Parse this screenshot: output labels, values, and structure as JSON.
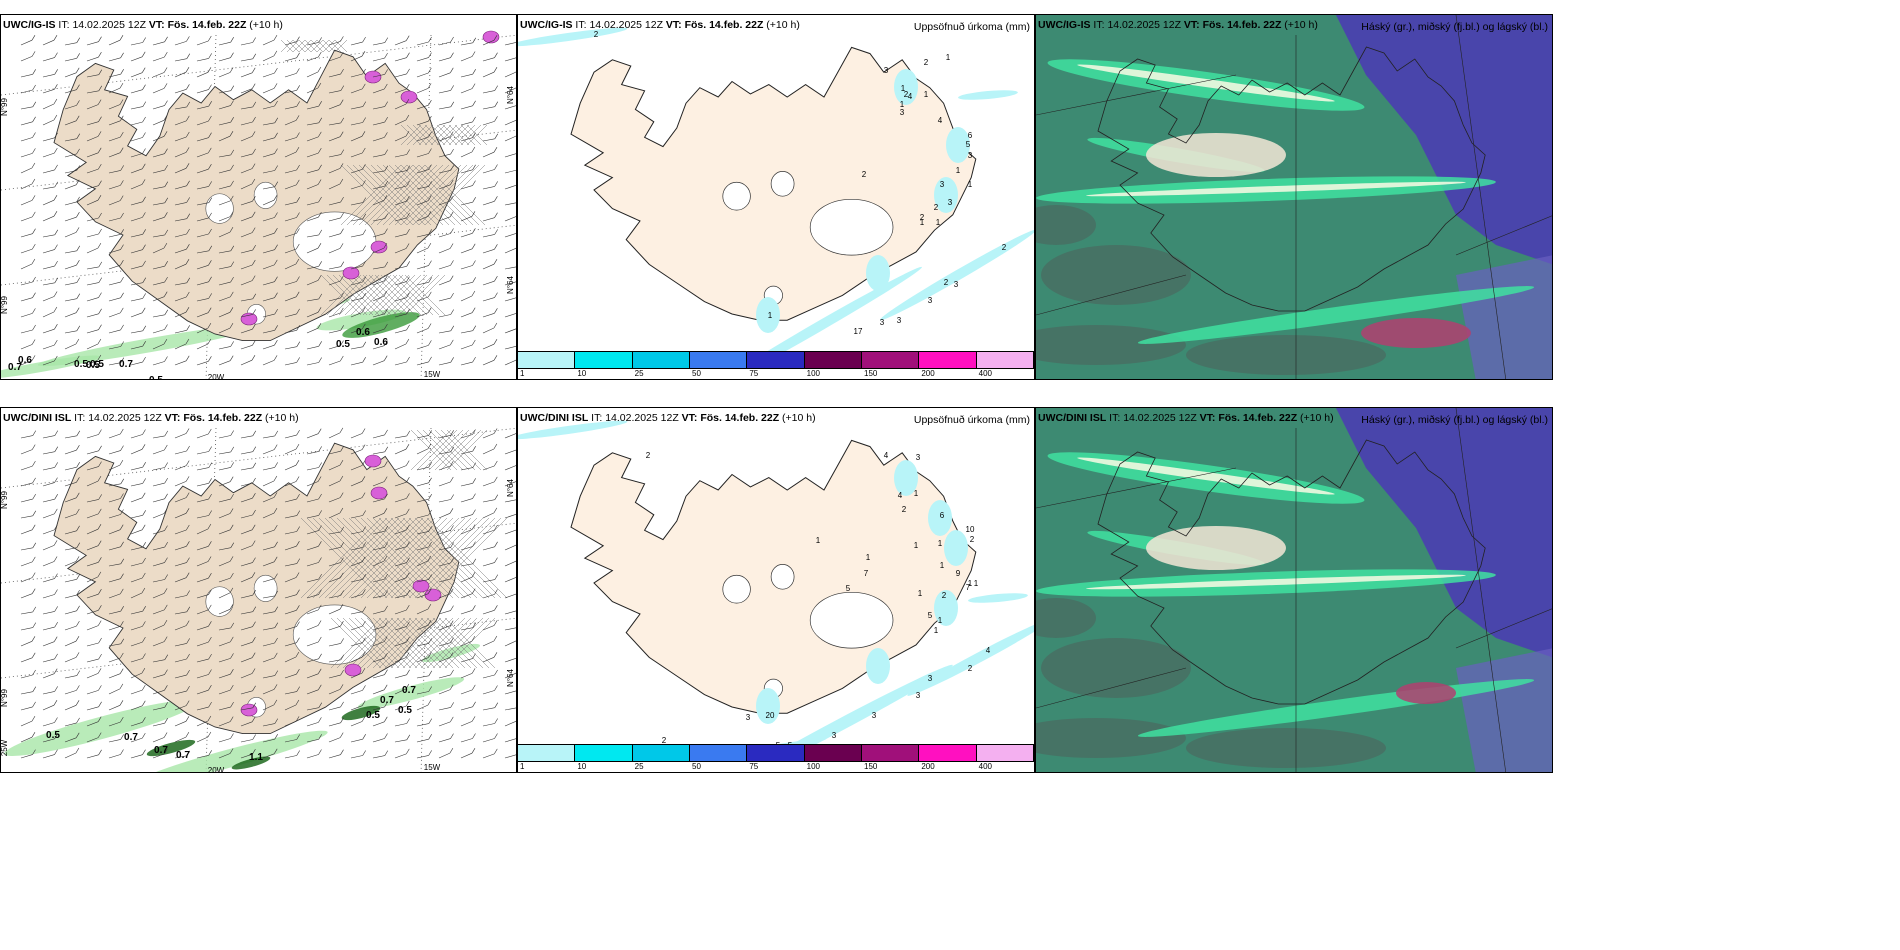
{
  "rows": [
    {
      "model": "UWC/IG-IS",
      "it_label": "IT:",
      "it_value": "14.02.2025 12Z",
      "vt_label": "VT:",
      "vt_value": "Fös. 14.feb. 22Z",
      "lead": "(+10 h)",
      "wind_labels": [
        "0.7",
        "0.6",
        "0.5",
        "0.5",
        "0.5",
        "0.7",
        "0.5",
        "0.5",
        "0.6",
        "0.6"
      ],
      "precip_labels": [
        "2",
        "1",
        "2",
        "3",
        "1",
        "2",
        "4",
        "1",
        "1",
        "3",
        "4",
        "6",
        "5",
        "3",
        "1",
        "2",
        "3",
        "1",
        "3",
        "2",
        "2",
        "1",
        "1",
        "2",
        "2",
        "3",
        "3",
        "3",
        "3",
        "17",
        "1"
      ],
      "lat_labels": [
        "N°99",
        "N°99",
        "N°64",
        "N°64"
      ],
      "lon_labels": [
        "20W",
        "15W"
      ]
    },
    {
      "model": "UWC/DINI ISL",
      "it_label": "IT:",
      "it_value": "14.02.2025 12Z",
      "vt_label": "VT:",
      "vt_value": "Fös. 14.feb. 22Z",
      "lead": "(+10 h)",
      "wind_labels": [
        "0.5",
        "0.7",
        "0.7",
        "0.7",
        "1.1",
        "0.7",
        "0.7",
        "0.5",
        "0.5"
      ],
      "precip_labels": [
        "2",
        "4",
        "3",
        "4",
        "2",
        "1",
        "6",
        "1",
        "10",
        "1",
        "1",
        "1",
        "2",
        "7",
        "1",
        "9",
        "5",
        "1",
        "1",
        "7",
        "1",
        "5",
        "2",
        "1",
        "1",
        "4",
        "2",
        "3",
        "3",
        "3",
        "3",
        "3",
        "20",
        "2",
        "5",
        "5",
        "2"
      ],
      "lat_labels": [
        "N°99",
        "N°99",
        "N°64",
        "N°64",
        "25W"
      ],
      "lon_labels": [
        "20W",
        "15W"
      ]
    }
  ],
  "precip_title": "Uppsöfnuð úrkoma (mm)",
  "cloud_title": "Háský (gr.), miðský (fj.bl.) og lágský (bl.)",
  "colorbar": {
    "colors": [
      "#b8f4f8",
      "#00e8f0",
      "#00c8e8",
      "#3a7af0",
      "#2a2ac0",
      "#6a0050",
      "#a0107a",
      "#ff10c0",
      "#f4b0f0"
    ],
    "labels": [
      "1",
      "10",
      "25",
      "50",
      "75",
      "100",
      "150",
      "200",
      "400"
    ]
  }
}
